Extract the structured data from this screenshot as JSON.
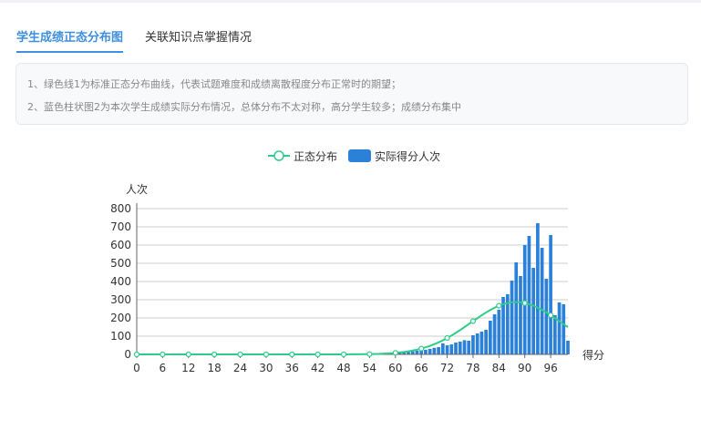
{
  "tabs": [
    {
      "label": "学生成绩正态分布图",
      "active": true
    },
    {
      "label": "关联知识点掌握情况",
      "active": false
    }
  ],
  "notes": [
    "1、绿色线1为标准正态分布曲线，代表试题难度和成绩离散程度分布正常时的期望；",
    "2、蓝色柱状图2为本次学生成绩实际分布情况，总体分布不太对称，高分学生较多；成绩分布集中"
  ],
  "colors": {
    "accent": "#3f8fdd",
    "normal_line": "#2ecc8a",
    "bar": "#2b80d8"
  },
  "chart_data": {
    "type": "bar",
    "legend": [
      "正态分布",
      "实际得分人次"
    ],
    "legend_position": "top-center",
    "ylabel": "人次",
    "xlabel": "得分",
    "ylim": [
      0,
      800
    ],
    "yticks": [
      0,
      100,
      200,
      300,
      400,
      500,
      600,
      700,
      800
    ],
    "xticks": [
      0,
      6,
      12,
      18,
      24,
      30,
      36,
      42,
      48,
      54,
      60,
      66,
      72,
      78,
      84,
      90,
      96
    ],
    "x_range": [
      0,
      100
    ],
    "grid": true,
    "series": [
      {
        "name": "实际得分人次",
        "type": "bar",
        "x": [
          0,
          1,
          2,
          3,
          4,
          5,
          6,
          7,
          8,
          9,
          10,
          11,
          12,
          13,
          14,
          15,
          16,
          17,
          18,
          19,
          20,
          21,
          22,
          23,
          24,
          25,
          26,
          27,
          28,
          29,
          30,
          31,
          32,
          33,
          34,
          35,
          36,
          37,
          38,
          39,
          40,
          41,
          42,
          43,
          44,
          45,
          46,
          47,
          48,
          49,
          50,
          51,
          52,
          53,
          54,
          55,
          56,
          57,
          58,
          59,
          60,
          61,
          62,
          63,
          64,
          65,
          66,
          67,
          68,
          69,
          70,
          71,
          72,
          73,
          74,
          75,
          76,
          77,
          78,
          79,
          80,
          81,
          82,
          83,
          84,
          85,
          86,
          87,
          88,
          89,
          90,
          91,
          92,
          93,
          94,
          95,
          96,
          97,
          98,
          99,
          100
        ],
        "values": [
          0,
          0,
          0,
          0,
          0,
          0,
          0,
          0,
          0,
          0,
          0,
          0,
          0,
          0,
          0,
          0,
          0,
          0,
          0,
          0,
          0,
          0,
          0,
          0,
          0,
          0,
          0,
          0,
          0,
          2,
          3,
          2,
          2,
          3,
          2,
          2,
          2,
          2,
          2,
          2,
          2,
          2,
          2,
          2,
          2,
          2,
          2,
          3,
          3,
          3,
          3,
          4,
          4,
          4,
          5,
          5,
          5,
          6,
          7,
          8,
          8,
          10,
          12,
          14,
          17,
          20,
          22,
          25,
          30,
          36,
          40,
          60,
          50,
          55,
          65,
          70,
          78,
          75,
          105,
          115,
          125,
          135,
          185,
          220,
          245,
          315,
          330,
          405,
          505,
          430,
          600,
          650,
          475,
          720,
          585,
          415,
          655,
          215,
          285,
          275,
          75
        ]
      },
      {
        "name": "正态分布",
        "type": "line",
        "markers_x": [
          0,
          6,
          12,
          18,
          24,
          30,
          36,
          42,
          48,
          54,
          60,
          66,
          72,
          78,
          84,
          90,
          96
        ],
        "mean": 88,
        "sigma": 10.5,
        "peak": 287
      }
    ]
  }
}
